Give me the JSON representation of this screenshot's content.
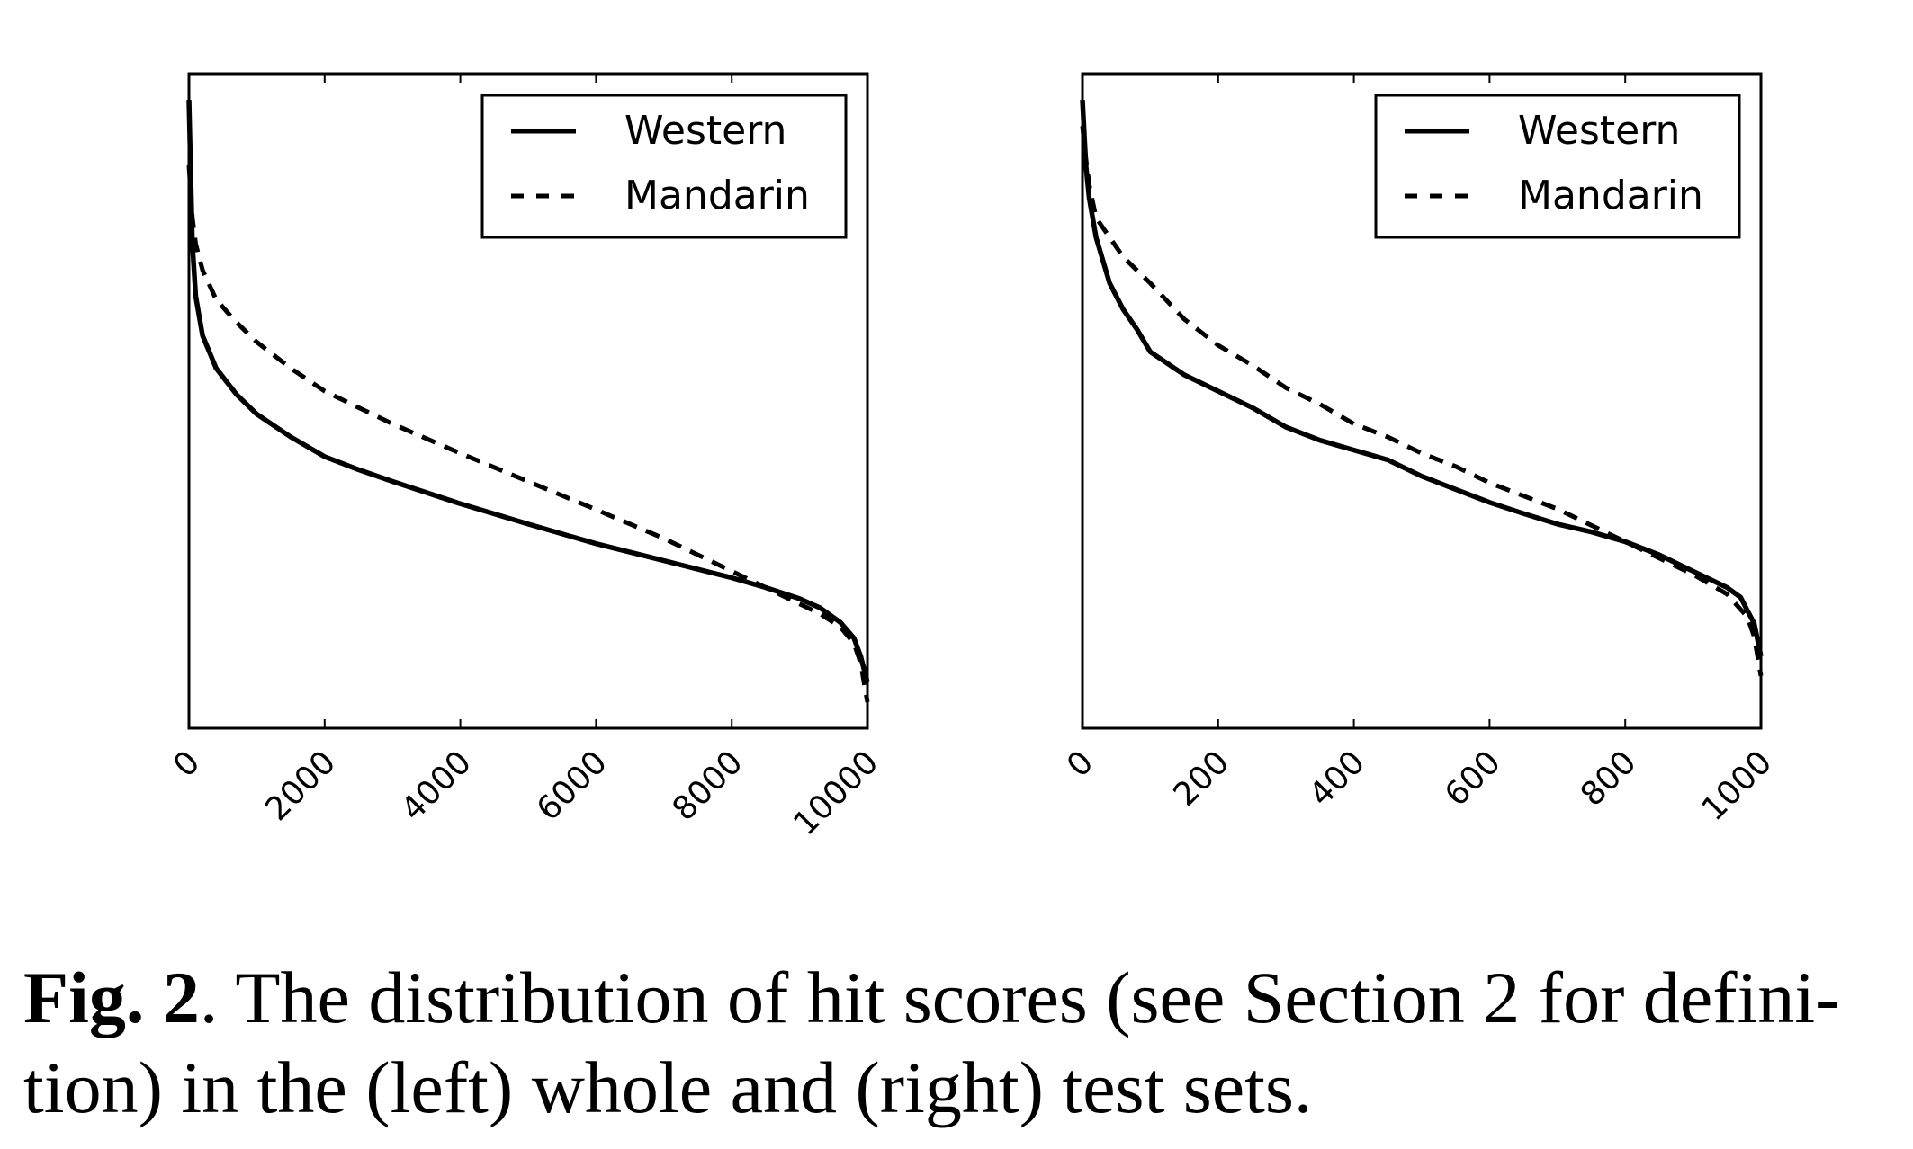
{
  "chart_data": [
    {
      "type": "line",
      "xlim": [
        0,
        10000
      ],
      "x_ticks": [
        "0",
        "2000",
        "4000",
        "6000",
        "8000",
        "10000"
      ],
      "y_ticks_labeled": false,
      "grid": false,
      "legend_position": "top-right",
      "series": [
        {
          "name": "Western",
          "style": "solid",
          "x": [
            0,
            50,
            100,
            200,
            400,
            700,
            1000,
            1500,
            2000,
            2500,
            3000,
            4000,
            5000,
            6000,
            7000,
            8000,
            8500,
            9000,
            9300,
            9600,
            9800,
            9900,
            9950,
            10000
          ],
          "y": [
            0.96,
            0.74,
            0.66,
            0.6,
            0.55,
            0.51,
            0.48,
            0.445,
            0.415,
            0.395,
            0.377,
            0.343,
            0.312,
            0.282,
            0.256,
            0.23,
            0.215,
            0.198,
            0.184,
            0.162,
            0.138,
            0.11,
            0.09,
            0.07
          ]
        },
        {
          "name": "Mandarin",
          "style": "dashed",
          "x": [
            0,
            50,
            100,
            200,
            400,
            700,
            1000,
            1500,
            2000,
            3000,
            4000,
            5000,
            6000,
            7000,
            8000,
            8500,
            9000,
            9300,
            9600,
            9800,
            9900,
            9950,
            10000
          ],
          "y": [
            0.86,
            0.78,
            0.74,
            0.7,
            0.655,
            0.62,
            0.59,
            0.55,
            0.515,
            0.465,
            0.42,
            0.377,
            0.334,
            0.29,
            0.24,
            0.215,
            0.19,
            0.175,
            0.155,
            0.13,
            0.1,
            0.07,
            0.04
          ]
        }
      ]
    },
    {
      "type": "line",
      "xlim": [
        0,
        1000
      ],
      "x_ticks": [
        "0",
        "200",
        "400",
        "600",
        "800",
        "1000"
      ],
      "y_ticks_labeled": false,
      "grid": false,
      "legend_position": "top-right",
      "series": [
        {
          "name": "Western",
          "style": "solid",
          "x": [
            0,
            5,
            10,
            20,
            40,
            60,
            80,
            100,
            150,
            200,
            250,
            300,
            350,
            400,
            450,
            500,
            550,
            600,
            650,
            700,
            750,
            800,
            850,
            900,
            950,
            970,
            980,
            990,
            1000
          ],
          "y": [
            0.96,
            0.86,
            0.81,
            0.75,
            0.68,
            0.64,
            0.61,
            0.575,
            0.54,
            0.515,
            0.49,
            0.46,
            0.44,
            0.425,
            0.41,
            0.385,
            0.365,
            0.345,
            0.328,
            0.312,
            0.3,
            0.285,
            0.265,
            0.24,
            0.215,
            0.2,
            0.18,
            0.16,
            0.11
          ]
        },
        {
          "name": "Mandarin",
          "style": "dashed",
          "x": [
            0,
            5,
            10,
            20,
            40,
            60,
            100,
            150,
            200,
            250,
            300,
            350,
            400,
            450,
            500,
            550,
            600,
            650,
            700,
            750,
            800,
            850,
            900,
            950,
            980,
            990,
            1000
          ],
          "y": [
            0.92,
            0.87,
            0.83,
            0.78,
            0.75,
            0.72,
            0.68,
            0.625,
            0.585,
            0.555,
            0.52,
            0.495,
            0.465,
            0.445,
            0.42,
            0.4,
            0.375,
            0.355,
            0.335,
            0.31,
            0.285,
            0.26,
            0.235,
            0.205,
            0.17,
            0.14,
            0.08
          ]
        }
      ]
    }
  ],
  "caption": {
    "label": "Fig. 2",
    "text": ". The distribution of hit scores (see Section 2 for defini- tion) in the (left) whole and (right) test sets."
  }
}
